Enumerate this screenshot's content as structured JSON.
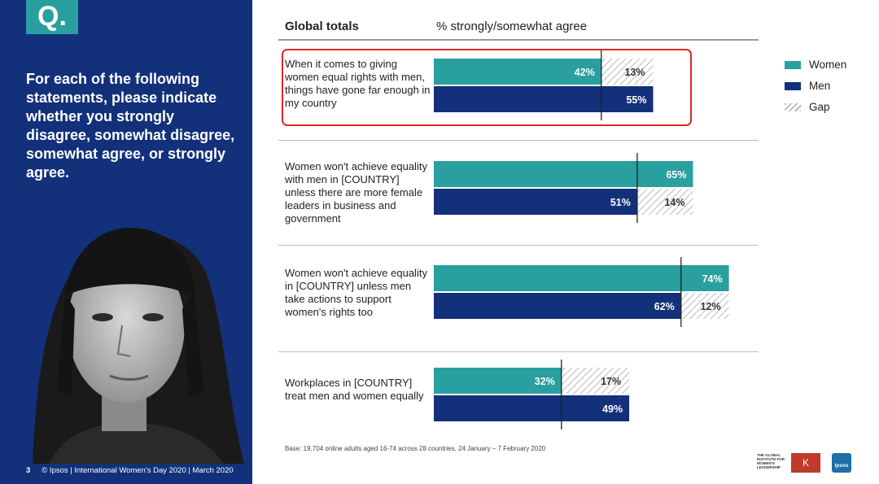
{
  "question": {
    "badge": "Q.",
    "text": "For each of the following statements, please indicate whether you strongly disagree, somewhat disagree, somewhat agree, or strongly agree."
  },
  "footer": {
    "page": "3",
    "credit": "© Ipsos | International Women's Day 2020 | March 2020"
  },
  "header": {
    "title": "Global totals",
    "subtitle": "% strongly/somewhat agree"
  },
  "legend": [
    {
      "label": "Women",
      "color": "#2a9fa0"
    },
    {
      "label": "Men",
      "color": "#13317a"
    },
    {
      "label": "Gap",
      "color": "#bbbbbb"
    }
  ],
  "base_note": "Base: 19,704 online adults aged 16-74 across 28 countries,  24 January – 7 February 2020",
  "logos": {
    "institute": "THE GLOBAL INSTITUTE FOR WOMEN'S LEADERSHIP",
    "kings": "K",
    "ipsos": "Ipsos"
  },
  "colors": {
    "women": "#2a9fa0",
    "men": "#13317a",
    "highlight": "#d92a26",
    "panel": "#13317a"
  },
  "chart_data": {
    "type": "bar",
    "orientation": "horizontal",
    "title": "Global totals",
    "ylabel": "% strongly/somewhat agree",
    "xlim": [
      0,
      100
    ],
    "categories": [
      "When it comes to giving women equal rights with men, things have gone far enough in my country",
      "Women won't achieve equality with men in [COUNTRY] unless there are more female leaders in business and government",
      "Women won't achieve equality in [COUNTRY] unless men take actions to support women's rights too",
      "Workplaces in [COUNTRY] treat men and women equally"
    ],
    "series": [
      {
        "name": "Women",
        "values": [
          42,
          65,
          74,
          32
        ]
      },
      {
        "name": "Men",
        "values": [
          55,
          51,
          62,
          49
        ]
      },
      {
        "name": "Gap",
        "values": [
          13,
          14,
          12,
          17
        ]
      }
    ],
    "gap_attached_to": [
      "Women",
      "Men",
      "Men",
      "Women"
    ],
    "highlighted_category_index": 0
  }
}
